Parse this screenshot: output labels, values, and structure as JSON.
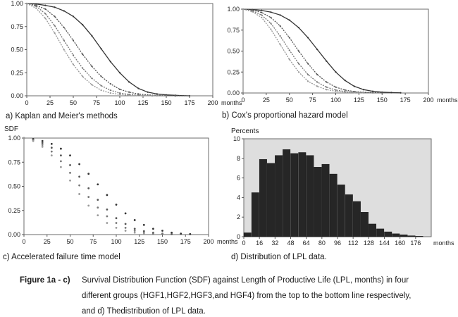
{
  "chart_data": [
    {
      "id": "a",
      "type": "line",
      "title": "a)   Kaplan and Meier's methods",
      "ylabel": "",
      "x_unit": "months",
      "xticks": [
        0,
        25,
        50,
        75,
        100,
        125,
        150,
        175,
        200
      ],
      "yticks": [
        "0.00",
        "0.25",
        "0.50",
        "0.75",
        "1.00"
      ],
      "xlim": [
        0,
        200
      ],
      "ylim": [
        0,
        1
      ],
      "colors": [
        "#333333",
        "#555555",
        "#777777",
        "#999999"
      ],
      "series": [
        {
          "x": [
            0,
            10,
            20,
            30,
            40,
            50,
            60,
            70,
            80,
            90,
            100,
            110,
            120,
            130,
            140,
            150,
            160,
            175
          ],
          "y": [
            1.0,
            0.995,
            0.98,
            0.96,
            0.92,
            0.86,
            0.77,
            0.65,
            0.51,
            0.37,
            0.25,
            0.15,
            0.08,
            0.04,
            0.02,
            0.01,
            0.005,
            0.0
          ]
        },
        {
          "x": [
            0,
            10,
            20,
            30,
            40,
            50,
            60,
            70,
            80,
            90,
            100,
            110,
            120,
            130,
            140,
            160,
            175
          ],
          "y": [
            1.0,
            0.98,
            0.94,
            0.86,
            0.74,
            0.6,
            0.45,
            0.32,
            0.21,
            0.13,
            0.07,
            0.04,
            0.02,
            0.01,
            0.005,
            0.0,
            0.0
          ]
        },
        {
          "x": [
            0,
            10,
            20,
            30,
            40,
            50,
            60,
            70,
            80,
            90,
            100,
            110,
            120,
            135,
            150
          ],
          "y": [
            1.0,
            0.97,
            0.89,
            0.76,
            0.6,
            0.44,
            0.3,
            0.19,
            0.11,
            0.06,
            0.03,
            0.015,
            0.007,
            0.0,
            0.0
          ]
        },
        {
          "x": [
            0,
            10,
            20,
            30,
            40,
            50,
            60,
            70,
            80,
            90,
            100,
            110,
            125,
            140
          ],
          "y": [
            1.0,
            0.95,
            0.84,
            0.68,
            0.5,
            0.34,
            0.21,
            0.12,
            0.06,
            0.03,
            0.015,
            0.005,
            0.0,
            0.0
          ]
        }
      ]
    },
    {
      "id": "b",
      "type": "line",
      "title": "b)   Cox's proportional hazard model",
      "ylabel": "",
      "x_unit": "months",
      "xticks": [
        0,
        25,
        50,
        75,
        100,
        125,
        150,
        175,
        200
      ],
      "yticks": [
        "0.00",
        "0.25",
        "0.50",
        "0.75",
        "1.00"
      ],
      "xlim": [
        0,
        200
      ],
      "ylim": [
        0,
        1
      ],
      "colors": [
        "#333333",
        "#555555",
        "#777777",
        "#999999"
      ],
      "series": [
        {
          "x": [
            0,
            10,
            20,
            30,
            40,
            50,
            60,
            70,
            80,
            90,
            100,
            110,
            120,
            130,
            140,
            150,
            160,
            170
          ],
          "y": [
            1.0,
            0.995,
            0.985,
            0.965,
            0.93,
            0.87,
            0.78,
            0.66,
            0.52,
            0.38,
            0.25,
            0.15,
            0.08,
            0.04,
            0.02,
            0.01,
            0.005,
            0.002
          ]
        },
        {
          "x": [
            0,
            10,
            20,
            30,
            40,
            50,
            60,
            70,
            80,
            90,
            100,
            110,
            120,
            130,
            140,
            150
          ],
          "y": [
            1.0,
            0.99,
            0.96,
            0.9,
            0.8,
            0.66,
            0.5,
            0.35,
            0.22,
            0.13,
            0.07,
            0.035,
            0.017,
            0.008,
            0.004,
            0.002
          ]
        },
        {
          "x": [
            0,
            10,
            20,
            30,
            40,
            50,
            60,
            70,
            80,
            90,
            100,
            110,
            120,
            130,
            140
          ],
          "y": [
            1.0,
            0.98,
            0.93,
            0.83,
            0.68,
            0.51,
            0.35,
            0.22,
            0.13,
            0.07,
            0.035,
            0.017,
            0.008,
            0.004,
            0.002
          ]
        },
        {
          "x": [
            0,
            10,
            20,
            30,
            40,
            50,
            60,
            70,
            80,
            90,
            100,
            110,
            120,
            130
          ],
          "y": [
            1.0,
            0.97,
            0.9,
            0.76,
            0.58,
            0.4,
            0.25,
            0.14,
            0.08,
            0.04,
            0.02,
            0.01,
            0.005,
            0.002
          ]
        }
      ]
    },
    {
      "id": "c",
      "type": "scatter",
      "title": "c)   Accelerated failure time model",
      "ylabel": "SDF",
      "x_unit": "months",
      "xticks": [
        0,
        25,
        50,
        75,
        100,
        125,
        150,
        175,
        200
      ],
      "yticks": [
        "0.00",
        "0.25",
        "0.50",
        "0.75",
        "1.00"
      ],
      "xlim": [
        0,
        200
      ],
      "ylim": [
        0,
        1
      ],
      "colors": [
        "#333333",
        "#555555",
        "#777777",
        "#999999"
      ],
      "series": [
        {
          "x": [
            0,
            10,
            20,
            30,
            40,
            50,
            60,
            70,
            80,
            90,
            100,
            110,
            120,
            130,
            140,
            150,
            160,
            170,
            180
          ],
          "y": [
            1.0,
            0.99,
            0.97,
            0.94,
            0.89,
            0.82,
            0.73,
            0.63,
            0.52,
            0.41,
            0.31,
            0.22,
            0.15,
            0.1,
            0.06,
            0.04,
            0.02,
            0.01,
            0.005
          ]
        },
        {
          "x": [
            0,
            10,
            20,
            30,
            40,
            50,
            60,
            70,
            80,
            90,
            100,
            110,
            120,
            130,
            140,
            150,
            160
          ],
          "y": [
            1.0,
            0.98,
            0.95,
            0.9,
            0.82,
            0.72,
            0.6,
            0.48,
            0.36,
            0.26,
            0.17,
            0.11,
            0.06,
            0.035,
            0.02,
            0.01,
            0.005
          ]
        },
        {
          "x": [
            0,
            10,
            20,
            30,
            40,
            50,
            60,
            70,
            80,
            90,
            100,
            110,
            120,
            130,
            140,
            150
          ],
          "y": [
            1.0,
            0.98,
            0.93,
            0.86,
            0.76,
            0.64,
            0.51,
            0.39,
            0.28,
            0.19,
            0.12,
            0.07,
            0.04,
            0.02,
            0.01,
            0.005
          ]
        },
        {
          "x": [
            0,
            10,
            20,
            30,
            40,
            50,
            60,
            70,
            80,
            90,
            100,
            110,
            120,
            130
          ],
          "y": [
            1.0,
            0.97,
            0.91,
            0.82,
            0.7,
            0.56,
            0.42,
            0.3,
            0.2,
            0.12,
            0.07,
            0.04,
            0.02,
            0.01
          ]
        }
      ]
    },
    {
      "id": "d",
      "type": "bar",
      "title": "d) Distribution of LPL data.",
      "ylabel": "Percents",
      "x_unit": "months",
      "xticks": [
        0,
        16,
        32,
        48,
        64,
        80,
        96,
        112,
        128,
        144,
        160,
        176
      ],
      "yticks": [
        "0",
        "2",
        "4",
        "6",
        "8",
        "10"
      ],
      "ylim": [
        0,
        10
      ],
      "bin_width": 8,
      "bin_starts": [
        0,
        8,
        16,
        24,
        32,
        40,
        48,
        56,
        64,
        72,
        80,
        88,
        96,
        104,
        112,
        120,
        128,
        136,
        144,
        152,
        160,
        168,
        176
      ],
      "values": [
        0.4,
        4.5,
        7.9,
        7.5,
        8.3,
        8.9,
        8.5,
        8.6,
        8.3,
        7.1,
        7.4,
        6.4,
        5.3,
        4.3,
        3.6,
        2.5,
        1.3,
        0.8,
        0.5,
        0.3,
        0.2,
        0.1,
        0.05
      ],
      "panel_background": "#dedede",
      "bar_color": "#262626"
    }
  ],
  "caption": {
    "label": "Figure 1a - c)",
    "lines": [
      "Survival Distribution Function (SDF) against Length of Productive Life (LPL, months) in four",
      "different groups (HGF1,HGF2,HGF3,and HGF4) from the top to the bottom line respectively,",
      "and d) Thedistribution of LPL data."
    ]
  }
}
